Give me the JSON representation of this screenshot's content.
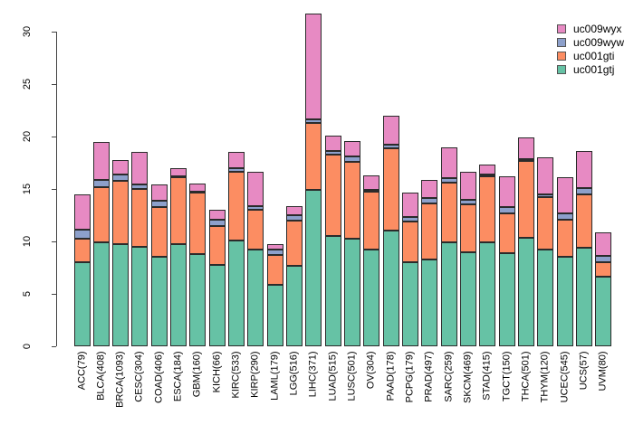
{
  "chart_data": {
    "type": "bar",
    "stacked": true,
    "title": "",
    "xlabel": "",
    "ylabel": "",
    "ylim": [
      0,
      30
    ],
    "yticks": [
      0,
      5,
      10,
      15,
      20,
      25,
      30
    ],
    "grid": false,
    "legend_position": "top-right",
    "legend_entries_top_to_bottom": [
      "uc009wyx",
      "uc009wyw",
      "uc001gti",
      "uc001gtj"
    ],
    "categories": [
      "ACC(79)",
      "BLCA(408)",
      "BRCA(1093)",
      "CESC(304)",
      "COAD(406)",
      "ESCA(184)",
      "GBM(160)",
      "KICH(66)",
      "KIRC(533)",
      "KIRP(290)",
      "LAML(179)",
      "LGG(516)",
      "LIHC(371)",
      "LUAD(515)",
      "LUSC(501)",
      "OV(304)",
      "PAAD(178)",
      "PCPG(179)",
      "PRAD(497)",
      "SARC(259)",
      "SKCM(469)",
      "STAD(415)",
      "TGCT(150)",
      "THCA(501)",
      "THYM(120)",
      "UCEC(545)",
      "UCS(57)",
      "UVM(80)"
    ],
    "series": [
      {
        "name": "uc001gtj",
        "color": "#66c2a5",
        "values": [
          8.0,
          9.9,
          9.7,
          9.5,
          8.5,
          9.7,
          8.8,
          7.8,
          10.1,
          9.2,
          5.9,
          7.7,
          14.9,
          10.5,
          10.3,
          9.25,
          11.0,
          8.0,
          8.3,
          9.9,
          9.0,
          9.9,
          8.9,
          10.35,
          9.2,
          8.5,
          9.4,
          6.6
        ]
      },
      {
        "name": "uc001gti",
        "color": "#fc8d62",
        "values": [
          2.3,
          5.3,
          6.1,
          5.5,
          4.8,
          6.4,
          5.85,
          3.7,
          6.5,
          3.8,
          2.8,
          4.3,
          6.4,
          7.8,
          7.3,
          5.45,
          7.9,
          3.9,
          5.3,
          5.7,
          4.5,
          6.3,
          3.8,
          7.3,
          5.05,
          3.55,
          5.1,
          1.4
        ]
      },
      {
        "name": "uc009wyw",
        "color": "#8da0cb",
        "values": [
          0.8,
          0.7,
          0.55,
          0.45,
          0.6,
          0.1,
          0.1,
          0.55,
          0.4,
          0.4,
          0.5,
          0.5,
          0.35,
          0.3,
          0.5,
          0.2,
          0.3,
          0.4,
          0.5,
          0.4,
          0.5,
          0.15,
          0.55,
          0.2,
          0.25,
          0.65,
          0.6,
          0.6
        ]
      },
      {
        "name": "uc009wyx",
        "color": "#e78ac3",
        "values": [
          3.4,
          3.6,
          1.45,
          3.1,
          1.5,
          0.8,
          0.75,
          1.0,
          1.55,
          3.2,
          0.5,
          0.85,
          10.1,
          1.5,
          1.5,
          1.4,
          2.8,
          2.35,
          1.75,
          3.0,
          2.6,
          1.0,
          2.95,
          2.05,
          3.5,
          3.45,
          3.55,
          2.3
        ]
      }
    ]
  }
}
